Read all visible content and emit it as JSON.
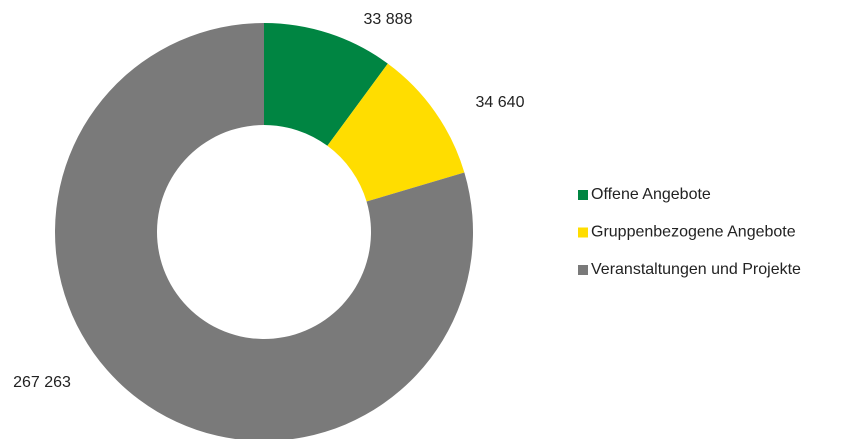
{
  "chart_data": {
    "type": "donut",
    "categories": [
      "Offene Angebote",
      "Gruppenbezogene Angebote",
      "Veranstaltungen und Projekte"
    ],
    "values": [
      33888,
      34640,
      267263
    ],
    "value_labels": [
      "33 888",
      "34 640",
      "267 263"
    ],
    "colors": [
      "#008542",
      "#ffdd00",
      "#7a7a7a"
    ],
    "legend": "right"
  }
}
